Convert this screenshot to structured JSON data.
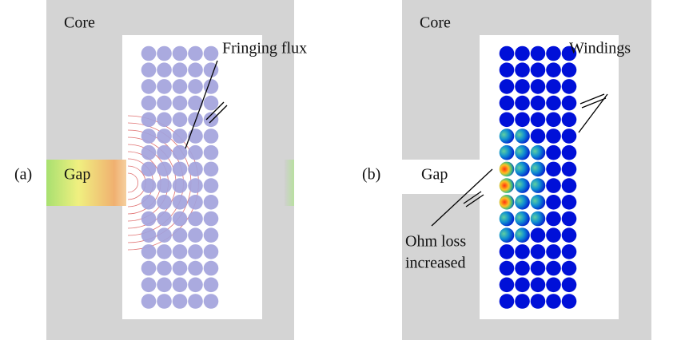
{
  "panels": [
    {
      "label": "(a)",
      "core": "Core",
      "gap": "Gap",
      "fringing_flux_label": "Fringing flux"
    },
    {
      "label": "(b)",
      "core": "Core",
      "gap": "Gap",
      "windings_label": "Windings",
      "ohm_loss_label": [
        "Ohm loss",
        "increased"
      ]
    }
  ]
}
